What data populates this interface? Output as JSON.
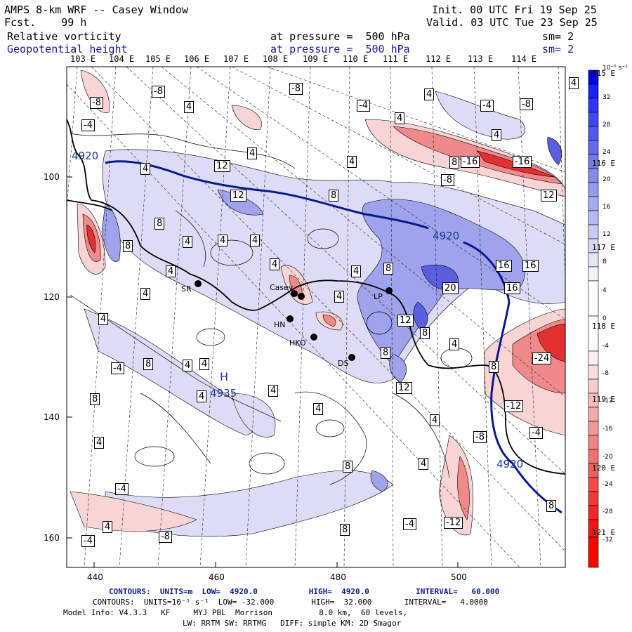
{
  "header": {
    "model_title": "AMPS 8-km WRF -- Casey Window",
    "fcst_label": "Fcst.    99 h",
    "init": "Init. 00 UTC Fri 19 Sep 25",
    "valid": "Valid. 03 UTC Tue 23 Sep 25",
    "field1": "Relative vorticity",
    "field1_level": "at pressure =  500 hPa",
    "field1_sm": "sm= 2",
    "field2": "Geopotential height",
    "field2_level": "at pressure =  500 hPa",
    "field2_sm": "sm= 2"
  },
  "colors": {
    "height_contour": "#0a1a8c",
    "positive_max": "#0000ee",
    "negative_max": "#ff0000"
  },
  "axes": {
    "lon_top": [
      "103 E",
      "104 E",
      "105 E",
      "106 E",
      "107 E",
      "108 E",
      "109 E",
      "110 E",
      "111 E",
      "112 E",
      "113 E",
      "114 E"
    ],
    "lon_right": [
      "115 E",
      "116 E",
      "117 E",
      "118 E",
      "119 E",
      "120 E",
      "121 E"
    ],
    "x_ticks": [
      "440",
      "460",
      "480",
      "500"
    ],
    "y_ticks": [
      "100",
      "120",
      "140",
      "160"
    ]
  },
  "colorbar": {
    "units": "10⁻⁵ s⁻¹",
    "labels": [
      "32",
      "28",
      "24",
      "20",
      "16",
      "12",
      "8",
      "4",
      "0",
      "-4",
      "-8",
      "-12",
      "-16",
      "-20",
      "-24",
      "-28",
      "-32"
    ]
  },
  "stations": [
    {
      "code": "SR"
    },
    {
      "code": "Casey"
    },
    {
      "code": "HN"
    },
    {
      "code": "HKO"
    },
    {
      "code": "DS"
    },
    {
      "code": "LP"
    }
  ],
  "contour_labels": [
    "-8",
    "-8",
    "-4",
    "-8",
    "-4",
    "-8",
    "-4",
    "4",
    "4",
    "4",
    "4",
    "4",
    "4",
    "4",
    "4",
    "12",
    "8",
    "8",
    "-16",
    "-8",
    "12",
    "12",
    "-16",
    "8",
    "8",
    "4",
    "4",
    "4",
    "4",
    "8",
    "4",
    "4",
    "4",
    "4",
    "8",
    "16",
    "16",
    "20",
    "16",
    "12",
    "4",
    "4",
    "8",
    "-24",
    "-12",
    "8",
    "-8",
    "-4",
    "4",
    "-4",
    "-4",
    "4",
    "-4",
    "-12",
    "-8",
    "8",
    "4",
    "-4",
    "4",
    "4",
    "8",
    "8",
    "4",
    "4",
    "4",
    "12",
    "8",
    "8",
    "4"
  ],
  "height_labels": [
    "4920",
    "4920",
    "4920",
    "4935",
    "H"
  ],
  "footer": {
    "contours1": "CONTOURS:  UNITS=m  LOW=  4920.0           HIGH=  4920.0          INTERVAL=   60.000",
    "contours2": "CONTOURS:  UNITS=10⁻⁵ s⁻¹  LOW= -32.000        HIGH=  32.000       INTERVAL=   4.0000",
    "model_info": "Model Info: V4.3.3   KF     MYJ PBL  Morrison          8.0 km,  60 levels,",
    "physics": "LW: RRTM SW: RRTMG   DIFF: simple KM: 2D Smagor"
  }
}
